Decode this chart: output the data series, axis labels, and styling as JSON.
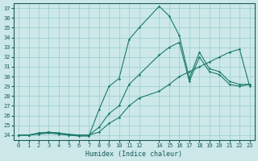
{
  "xlabel": "Humidex (Indice chaleur)",
  "bg_color": "#cce8e8",
  "grid_color": "#99cccc",
  "line_color": "#1a7a6a",
  "ylim": [
    23.5,
    37.5
  ],
  "xlim": [
    -0.5,
    23.5
  ],
  "yticks": [
    24,
    25,
    26,
    27,
    28,
    29,
    30,
    31,
    32,
    33,
    34,
    35,
    36,
    37
  ],
  "xtick_pos": [
    0,
    1,
    2,
    3,
    4,
    5,
    6,
    7,
    8,
    9,
    10,
    11,
    12,
    14,
    15,
    16,
    17,
    18,
    19,
    20,
    21,
    22,
    23
  ],
  "xtick_labels": [
    "0",
    "1",
    "2",
    "3",
    "4",
    "5",
    "6",
    "7",
    "8",
    "9",
    "10",
    "11",
    "12",
    "14",
    "15",
    "16",
    "17",
    "18",
    "19",
    "20",
    "21",
    "22",
    "23"
  ],
  "line1_x": [
    0,
    1,
    2,
    3,
    4,
    5,
    6,
    7,
    8,
    9,
    10,
    11,
    12,
    14,
    15,
    16,
    17,
    18,
    19,
    20,
    21,
    22,
    23
  ],
  "line1_y": [
    24,
    24,
    24.2,
    24.3,
    24.2,
    24.0,
    23.9,
    23.9,
    26.6,
    29.0,
    29.8,
    33.8,
    35.0,
    37.2,
    36.2,
    34.2,
    29.8,
    32.5,
    30.8,
    30.5,
    29.5,
    29.2,
    29.2
  ],
  "line2_x": [
    0,
    1,
    2,
    3,
    4,
    5,
    6,
    7,
    8,
    9,
    10,
    11,
    12,
    14,
    15,
    16,
    17,
    18,
    19,
    20,
    21,
    22,
    23
  ],
  "line2_y": [
    24,
    24,
    24.1,
    24.2,
    24.1,
    24.0,
    24.0,
    24.0,
    24.3,
    25.2,
    25.8,
    27.0,
    27.8,
    28.5,
    29.2,
    30.0,
    30.5,
    31.0,
    31.5,
    32.0,
    32.5,
    32.8,
    29.0
  ],
  "line3_x": [
    0,
    1,
    2,
    3,
    4,
    5,
    6,
    7,
    8,
    9,
    10,
    11,
    12,
    14,
    15,
    16,
    17,
    18,
    19,
    20,
    21,
    22,
    23
  ],
  "line3_y": [
    24,
    24,
    24.2,
    24.3,
    24.2,
    24.1,
    24.0,
    24.0,
    24.8,
    26.2,
    27.0,
    29.2,
    30.2,
    32.2,
    33.0,
    33.5,
    29.5,
    32.0,
    30.5,
    30.2,
    29.2,
    29.0,
    29.2
  ]
}
